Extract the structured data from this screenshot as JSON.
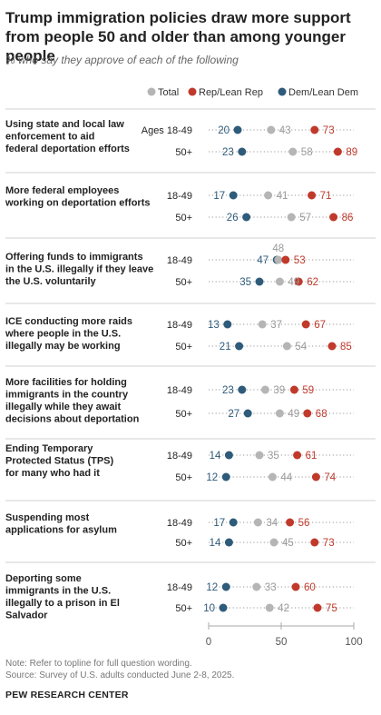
{
  "title": "Trump immigration policies draw more support from people 50 and older than among younger people",
  "subtitle": "% who say they approve of each of the following",
  "note": "Note: Refer to topline for full question wording.",
  "source": "Source: Survey of U.S. adults conducted June 2-8, 2025.",
  "brand": "PEW RESEARCH CENTER",
  "colors": {
    "total": "#b5b5b5",
    "rep": "#c0392b",
    "dem": "#2e5b7a",
    "separator": "#d0d0d0",
    "dots": "#9a9a9a"
  },
  "chart_data": {
    "type": "scatter",
    "legend": {
      "placement": "top-right",
      "entries": [
        "Total",
        "Rep/Lean Rep",
        "Dem/Lean Dem"
      ]
    },
    "axis": {
      "ticks": [
        "0",
        "50",
        "100"
      ],
      "range": [
        0,
        100
      ]
    },
    "groups": [
      {
        "label": "Using state and local law enforcement to aid federal deportation efforts",
        "rows": [
          {
            "age": "Ages 18-49",
            "dem": 20,
            "total": 43,
            "rep": 73
          },
          {
            "age": "50+",
            "dem": 23,
            "total": 58,
            "rep": 89
          }
        ]
      },
      {
        "label": "More federal employees working on deportation efforts",
        "rows": [
          {
            "age": "18-49",
            "dem": 17,
            "total": 41,
            "rep": 71
          },
          {
            "age": "50+",
            "dem": 26,
            "total": 57,
            "rep": 86
          }
        ]
      },
      {
        "label": "Offering funds to immigrants in the U.S. illegally if they leave the U.S. voluntarily",
        "rows": [
          {
            "age": "18-49",
            "dem": 47,
            "total": 48,
            "rep": 53
          },
          {
            "age": "50+",
            "dem": 35,
            "total": 49,
            "rep": 62
          }
        ]
      },
      {
        "label": "ICE conducting more raids where people in the U.S. illegally may be working",
        "rows": [
          {
            "age": "18-49",
            "dem": 13,
            "total": 37,
            "rep": 67
          },
          {
            "age": "50+",
            "dem": 21,
            "total": 54,
            "rep": 85
          }
        ]
      },
      {
        "label": "More facilities for holding immigrants in the country illegally while they await decisions about deportation",
        "rows": [
          {
            "age": "18-49",
            "dem": 23,
            "total": 39,
            "rep": 59
          },
          {
            "age": "50+",
            "dem": 27,
            "total": 49,
            "rep": 68
          }
        ]
      },
      {
        "label": "Ending Temporary Protected Status (TPS) for many who had it",
        "rows": [
          {
            "age": "18-49",
            "dem": 14,
            "total": 35,
            "rep": 61
          },
          {
            "age": "50+",
            "dem": 12,
            "total": 44,
            "rep": 74
          }
        ]
      },
      {
        "label": "Suspending most applications for asylum",
        "rows": [
          {
            "age": "18-49",
            "dem": 17,
            "total": 34,
            "rep": 56
          },
          {
            "age": "50+",
            "dem": 14,
            "total": 45,
            "rep": 73
          }
        ]
      },
      {
        "label": "Deporting some immigrants in the U.S. illegally to a prison in El Salvador",
        "rows": [
          {
            "age": "18-49",
            "dem": 12,
            "total": 33,
            "rep": 60
          },
          {
            "age": "50+",
            "dem": 10,
            "total": 42,
            "rep": 75
          }
        ]
      }
    ]
  }
}
